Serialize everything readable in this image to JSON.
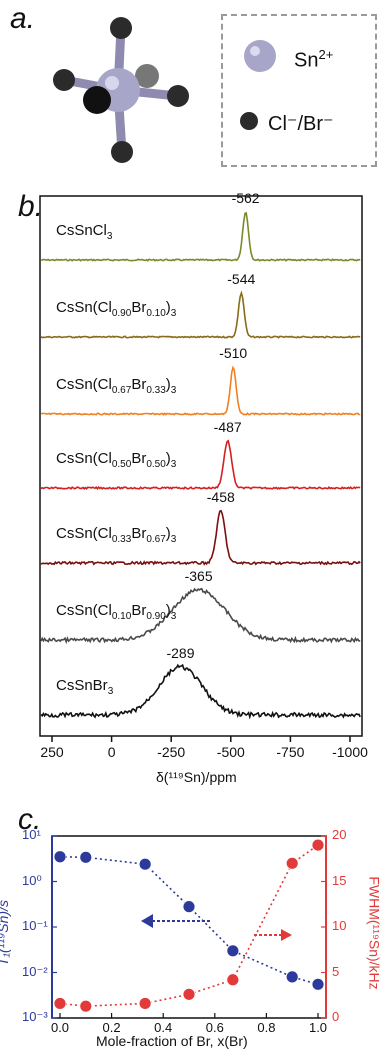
{
  "panel_labels": {
    "a": "a.",
    "b": "b.",
    "c": "c."
  },
  "legend": {
    "sn": {
      "text": "Sn",
      "sup": "2+",
      "color": "#a8a6c8"
    },
    "halide": {
      "text": "Cl⁻/Br⁻",
      "color": "#2b2b2b"
    }
  },
  "spectra": {
    "xlabel": "δ(¹¹⁹Sn)/ppm",
    "xlim": [
      250,
      -1000
    ],
    "ticks": [
      "250",
      "0",
      "-250",
      "-500",
      "-750",
      "-1000"
    ],
    "tick_values": [
      250,
      0,
      -250,
      -500,
      -750,
      -1000
    ],
    "traces": [
      {
        "label_main": "CsSnCl",
        "sub1": "3",
        "peak": "-562",
        "center": -562,
        "width": 12,
        "noise": 0.05,
        "color": "#7a8a2a"
      },
      {
        "label_main": "CsSn(Cl",
        "sub1": "0.90",
        "mid": "Br",
        "sub2": "0.10",
        "end": ")",
        "sub3": "3",
        "peak": "-544",
        "center": -544,
        "width": 12,
        "noise": 0.05,
        "color": "#8a6a18"
      },
      {
        "label_main": "CsSn(Cl",
        "sub1": "0.67",
        "mid": "Br",
        "sub2": "0.33",
        "end": ")",
        "sub3": "3",
        "peak": "-510",
        "center": -510,
        "width": 12,
        "noise": 0.05,
        "color": "#f08020"
      },
      {
        "label_main": "CsSn(Cl",
        "sub1": "0.50",
        "mid": "Br",
        "sub2": "0.50",
        "end": ")",
        "sub3": "3",
        "peak": "-487",
        "center": -487,
        "width": 16,
        "noise": 0.06,
        "color": "#d42020"
      },
      {
        "label_main": "CsSn(Cl",
        "sub1": "0.33",
        "mid": "Br",
        "sub2": "0.67",
        "end": ")",
        "sub3": "3",
        "peak": "-458",
        "center": -458,
        "width": 18,
        "noise": 0.08,
        "color": "#7a1010"
      },
      {
        "label_main": "CsSn(Cl",
        "sub1": "0.10",
        "mid": "Br",
        "sub2": "0.90",
        "end": ")",
        "sub3": "3",
        "peak": "-365",
        "center": -365,
        "width": 110,
        "noise": 0.12,
        "color": "#4a4a4a"
      },
      {
        "label_main": "CsSnBr",
        "sub1": "3",
        "peak": "-289",
        "center": -289,
        "width": 90,
        "noise": 0.15,
        "color": "#111111"
      }
    ]
  },
  "chart_data": {
    "type": "scatter",
    "xlabel": "Mole-fraction of Br, x(Br)",
    "ylabel_left": "T₁(¹¹⁹Sn)/s",
    "ylabel_right": "FWHM(¹¹⁹Sn)/kHz",
    "xlim": [
      0,
      1
    ],
    "xticks": [
      "0.0",
      "0.2",
      "0.4",
      "0.6",
      "0.8",
      "1.0"
    ],
    "left_yscale": "log",
    "left_ylim": [
      0.001,
      10
    ],
    "left_yticks": [
      "10¹",
      "10⁰",
      "10⁻¹",
      "10⁻²",
      "10⁻³"
    ],
    "right_ylim": [
      0,
      20
    ],
    "right_yticks": [
      "0",
      "5",
      "10",
      "15",
      "20"
    ],
    "series": [
      {
        "axis": "left",
        "color": "#2c3a9c",
        "x": [
          0.0,
          0.1,
          0.33,
          0.5,
          0.67,
          0.9,
          1.0
        ],
        "y": [
          3.5,
          3.4,
          2.4,
          0.28,
          0.03,
          0.008,
          0.0055
        ]
      },
      {
        "axis": "right",
        "color": "#e23a3a",
        "x": [
          0.0,
          0.1,
          0.33,
          0.5,
          0.67,
          0.9,
          1.0
        ],
        "y": [
          1.6,
          1.3,
          1.6,
          2.6,
          4.2,
          17.0,
          19.0
        ]
      }
    ]
  }
}
